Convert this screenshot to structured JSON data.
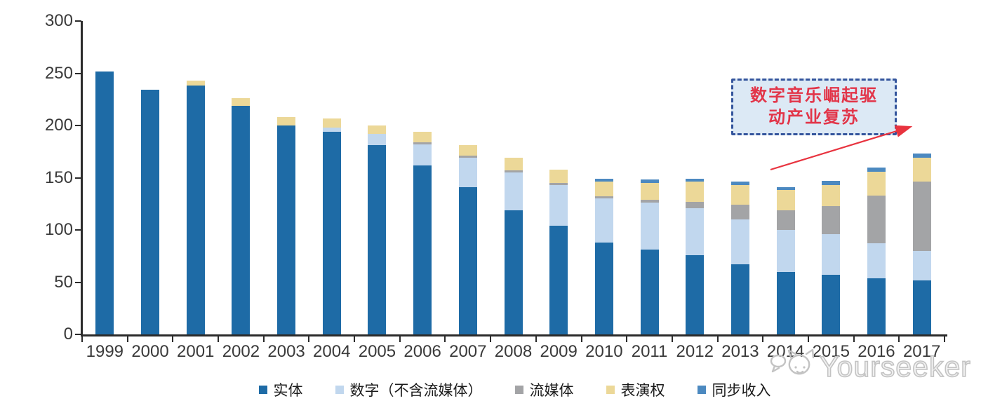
{
  "watermark": {
    "brand": "Yourseeker"
  },
  "annotation": {
    "full_text": "数字音乐崛起驱动产业复苏",
    "lines": [
      "数字音乐崛起驱",
      "动产业复苏"
    ]
  },
  "colors": {
    "physical": "#1e6ba6",
    "digital": "#c1d7ee",
    "streaming": "#a3a4a6",
    "performance": "#ecd898",
    "sync": "#4c89c0",
    "axis": "#2b2b2b",
    "annotation_fill": "#dce9f5",
    "annotation_border": "#33549c",
    "annotation_text": "#e23549",
    "arrow": "#e8333f",
    "watermark_gray": "#c3c3c3"
  },
  "chart_data": {
    "type": "bar",
    "stacked": true,
    "title": "",
    "xlabel": "",
    "ylabel": "",
    "ylim": [
      0,
      300
    ],
    "yticks": [
      0,
      50,
      100,
      150,
      200,
      250,
      300
    ],
    "grid": false,
    "legend_position": "bottom",
    "categories": [
      "1999",
      "2000",
      "2001",
      "2002",
      "2003",
      "2004",
      "2005",
      "2006",
      "2007",
      "2008",
      "2009",
      "2010",
      "2011",
      "2012",
      "2013",
      "2014",
      "2015",
      "2016",
      "2017"
    ],
    "series": [
      {
        "name": "实体",
        "color": "#1e6ba6",
        "values": [
          252,
          234,
          238,
          219,
          200,
          194,
          181,
          162,
          141,
          119,
          104,
          88,
          81,
          76,
          67,
          60,
          57,
          54,
          52
        ]
      },
      {
        "name": "数字（不含流媒体）",
        "color": "#c1d7ee",
        "values": [
          0,
          0,
          0,
          0,
          0,
          4,
          11,
          20,
          28,
          36,
          39,
          42,
          45,
          45,
          43,
          40,
          39,
          33,
          28
        ]
      },
      {
        "name": "流媒体",
        "color": "#a3a4a6",
        "values": [
          0,
          0,
          0,
          0,
          0,
          0,
          0,
          2,
          2,
          2,
          2,
          2,
          3,
          6,
          14,
          19,
          27,
          46,
          66
        ]
      },
      {
        "name": "表演权",
        "color": "#ecd898",
        "values": [
          0,
          0,
          5,
          7,
          8,
          9,
          8,
          10,
          10,
          12,
          13,
          14,
          16,
          19,
          19,
          19,
          20,
          23,
          23
        ]
      },
      {
        "name": "同步收入",
        "color": "#4c89c0",
        "values": [
          0,
          0,
          0,
          0,
          0,
          0,
          0,
          0,
          0,
          0,
          0,
          3,
          3,
          3,
          3,
          3,
          4,
          4,
          4
        ]
      }
    ],
    "annotation": "数字音乐崛起驱动产业复苏"
  }
}
